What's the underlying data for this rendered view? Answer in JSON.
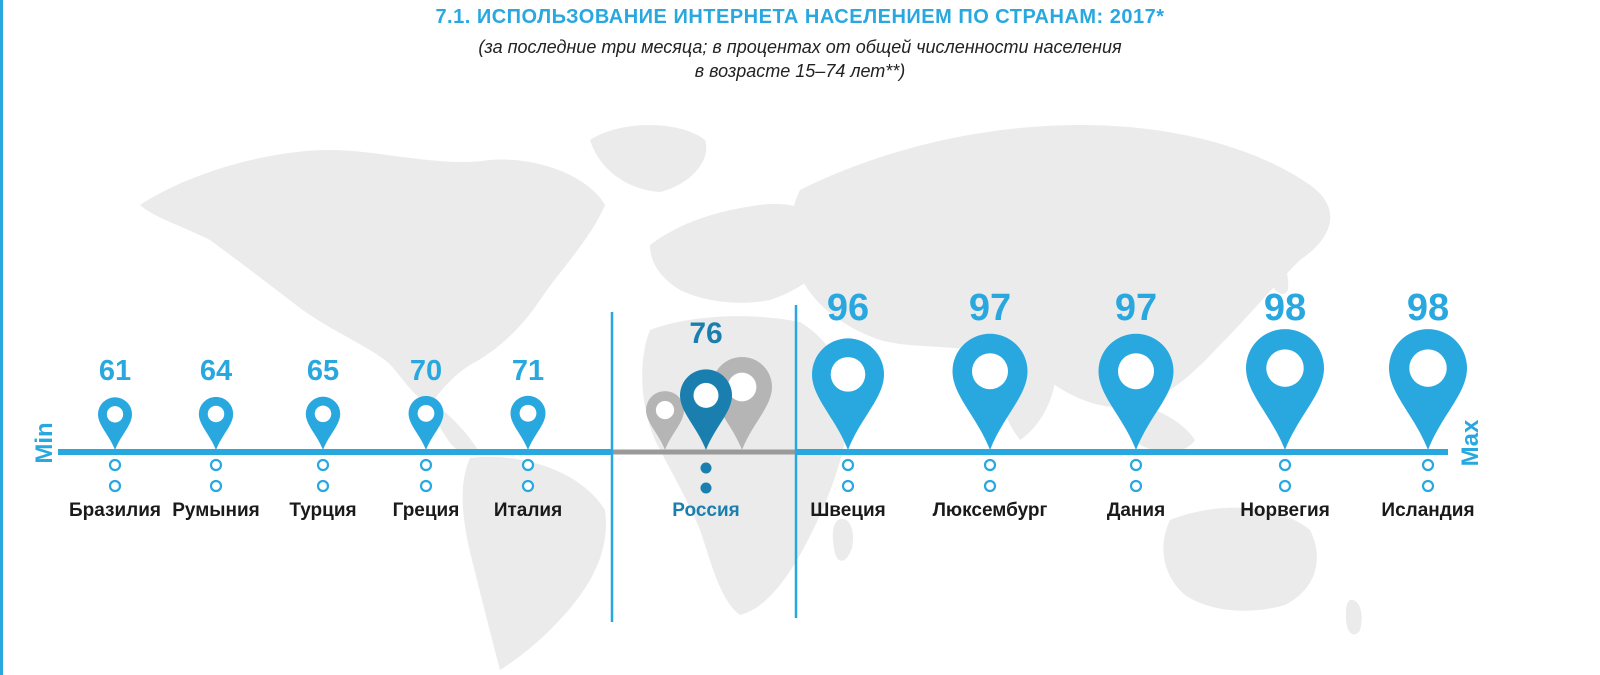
{
  "title": "7.1. ИСПОЛЬЗОВАНИЕ ИНТЕРНЕТА НАСЕЛЕНИЕМ ПО СТРАНАМ: 2017*",
  "subtitle_line1": "(за последние три месяца; в процентах от общей численности населения",
  "subtitle_line2": "в возрасте 15–74 лет**)",
  "axis": {
    "min_label": "Min",
    "max_label": "Max"
  },
  "colors": {
    "accent": "#29a8e0",
    "russia": "#1a7fae",
    "decoy_pin": "#b5b5b5",
    "map": "#ebebeb",
    "text": "#1a1a1a"
  },
  "chart_data": {
    "type": "scatter",
    "title": "7.1. ИСПОЛЬЗОВАНИЕ ИНТЕРНЕТА НАСЕЛЕНИЕМ ПО СТРАНАМ: 2017*",
    "categories": [
      "Бразилия",
      "Румыния",
      "Турция",
      "Греция",
      "Италия",
      "Россия",
      "Швеция",
      "Люксембург",
      "Дания",
      "Норвегия",
      "Исландия"
    ],
    "values": [
      61,
      64,
      65,
      70,
      71,
      76,
      96,
      97,
      97,
      98,
      98
    ],
    "highlight": "Россия",
    "groups": {
      "min": [
        "Бразилия",
        "Румыния",
        "Турция",
        "Греция",
        "Италия"
      ],
      "middle": [
        "Россия"
      ],
      "max": [
        "Швеция",
        "Люксембург",
        "Дания",
        "Норвегия",
        "Исландия"
      ]
    }
  }
}
